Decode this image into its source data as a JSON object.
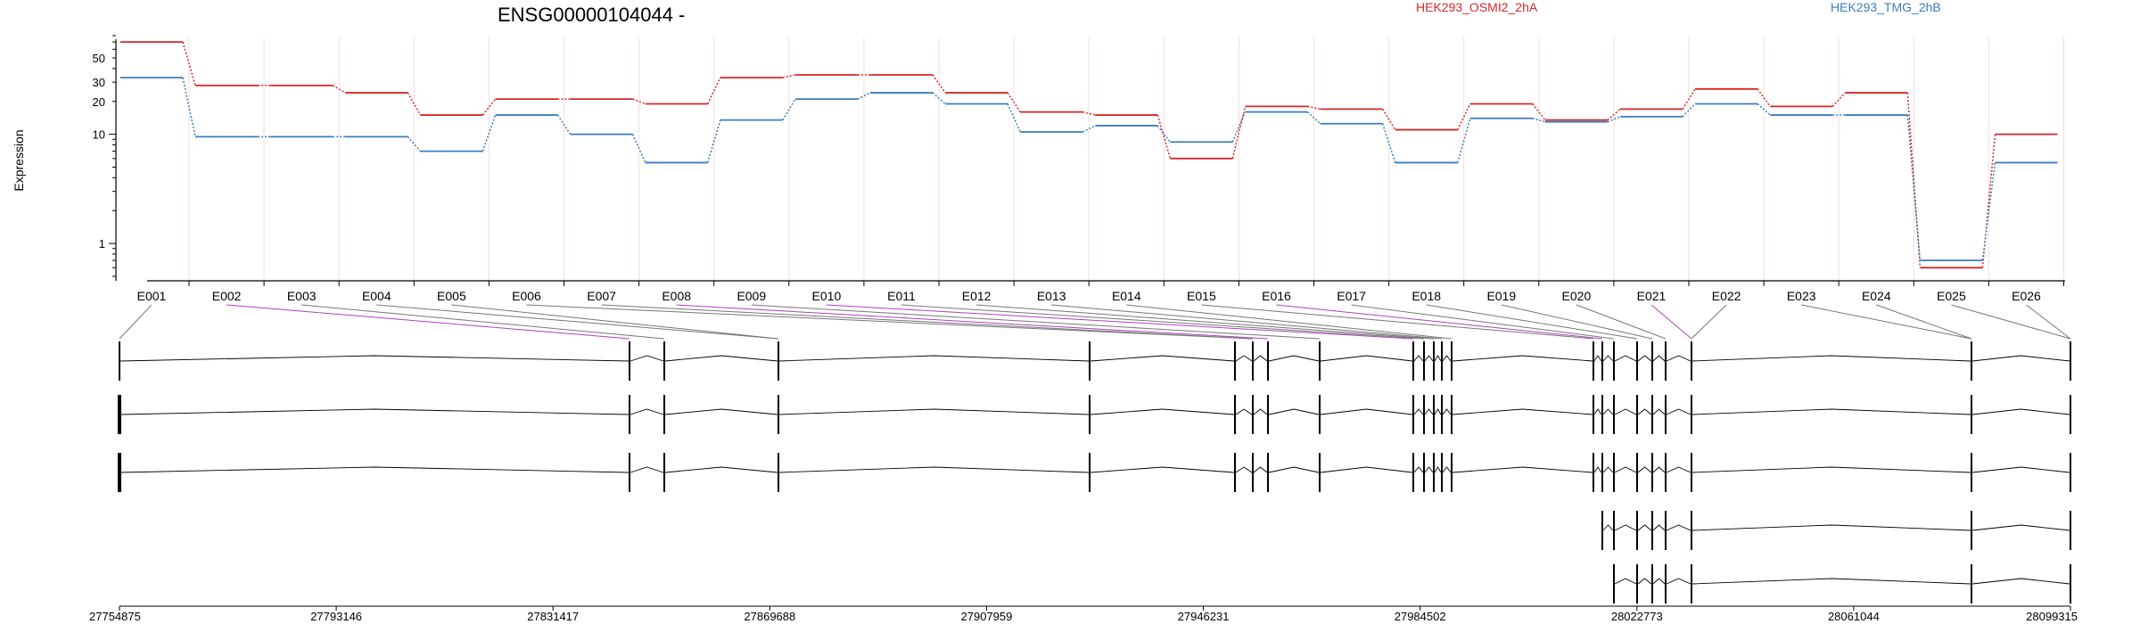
{
  "chart_data": {
    "type": "line",
    "title": "ENSG00000104044 -",
    "ylabel": "Expression",
    "y_scale": "log",
    "y_ticks": [
      {
        "value": 1,
        "label": "1"
      },
      {
        "value": 10,
        "label": "10"
      },
      {
        "value": 20,
        "label": "20"
      },
      {
        "value": 30,
        "label": "30"
      },
      {
        "value": 50,
        "label": "50"
      }
    ],
    "ylim": [
      0.5,
      80
    ],
    "categories": [
      "E001",
      "E002",
      "E003",
      "E004",
      "E005",
      "E006",
      "E007",
      "E008",
      "E009",
      "E010",
      "E011",
      "E012",
      "E013",
      "E014",
      "E015",
      "E016",
      "E017",
      "E018",
      "E019",
      "E020",
      "E021",
      "E022",
      "E023",
      "E024",
      "E025",
      "E026"
    ],
    "series": [
      {
        "name": "HEK293_OSMI2_2hA",
        "color": "#d62728",
        "values": [
          70,
          28,
          28,
          24,
          15,
          21,
          21,
          19,
          33,
          35,
          35,
          24,
          16,
          15,
          6,
          18,
          17,
          11,
          19,
          13.5,
          17,
          26,
          18,
          24,
          0.6,
          10
        ]
      },
      {
        "name": "HEK293_TMG_2hB",
        "color": "#3a7dc1",
        "values": [
          33,
          9.5,
          9.5,
          9.5,
          7,
          15,
          10,
          5.5,
          13.5,
          21,
          24,
          19,
          10.5,
          12,
          8.5,
          16,
          12.5,
          5.5,
          14,
          13,
          14.5,
          19,
          15,
          15,
          0.7,
          5.5
        ]
      }
    ],
    "gene_model": {
      "coordinate_ticks": [
        "27754875",
        "27793146",
        "27831417",
        "27869688",
        "27907959",
        "27946231",
        "27984502",
        "28022773",
        "28061044",
        "28099315"
      ]
    }
  }
}
